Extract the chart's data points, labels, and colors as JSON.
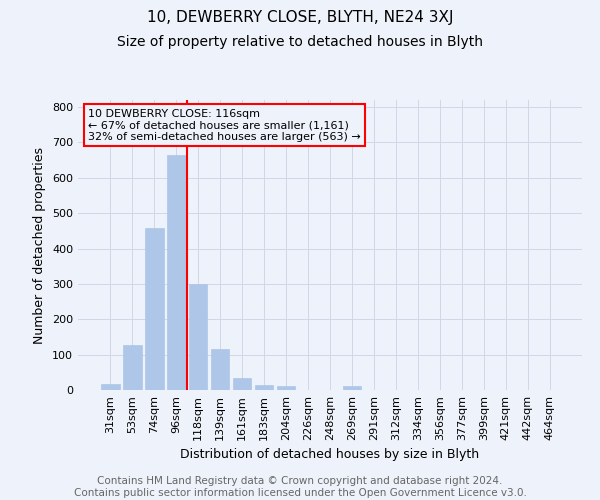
{
  "title1": "10, DEWBERRY CLOSE, BLYTH, NE24 3XJ",
  "title2": "Size of property relative to detached houses in Blyth",
  "xlabel": "Distribution of detached houses by size in Blyth",
  "ylabel": "Number of detached properties",
  "footnote": "Contains HM Land Registry data © Crown copyright and database right 2024.\nContains public sector information licensed under the Open Government Licence v3.0.",
  "bar_labels": [
    "31sqm",
    "53sqm",
    "74sqm",
    "96sqm",
    "118sqm",
    "139sqm",
    "161sqm",
    "183sqm",
    "204sqm",
    "226sqm",
    "248sqm",
    "269sqm",
    "291sqm",
    "312sqm",
    "334sqm",
    "356sqm",
    "377sqm",
    "399sqm",
    "421sqm",
    "442sqm",
    "464sqm"
  ],
  "bar_values": [
    17,
    127,
    457,
    665,
    300,
    115,
    35,
    15,
    10,
    0,
    0,
    10,
    0,
    0,
    0,
    0,
    0,
    0,
    0,
    0,
    0
  ],
  "bar_color": "#aec6e8",
  "bar_edgecolor": "#aec6e8",
  "grid_color": "#d0d8e8",
  "vline_x_index": 4,
  "vline_color": "red",
  "annotation_line1": "10 DEWBERRY CLOSE: 116sqm",
  "annotation_line2": "← 67% of detached houses are smaller (1,161)",
  "annotation_line3": "32% of semi-detached houses are larger (563) →",
  "annotation_box_color": "red",
  "ylim": [
    0,
    820
  ],
  "yticks": [
    0,
    100,
    200,
    300,
    400,
    500,
    600,
    700,
    800
  ],
  "bg_color": "#eef2fa",
  "title1_fontsize": 11,
  "title2_fontsize": 10,
  "xlabel_fontsize": 9,
  "ylabel_fontsize": 9,
  "tick_fontsize": 8,
  "annotation_fontsize": 8,
  "footnote_fontsize": 7.5
}
